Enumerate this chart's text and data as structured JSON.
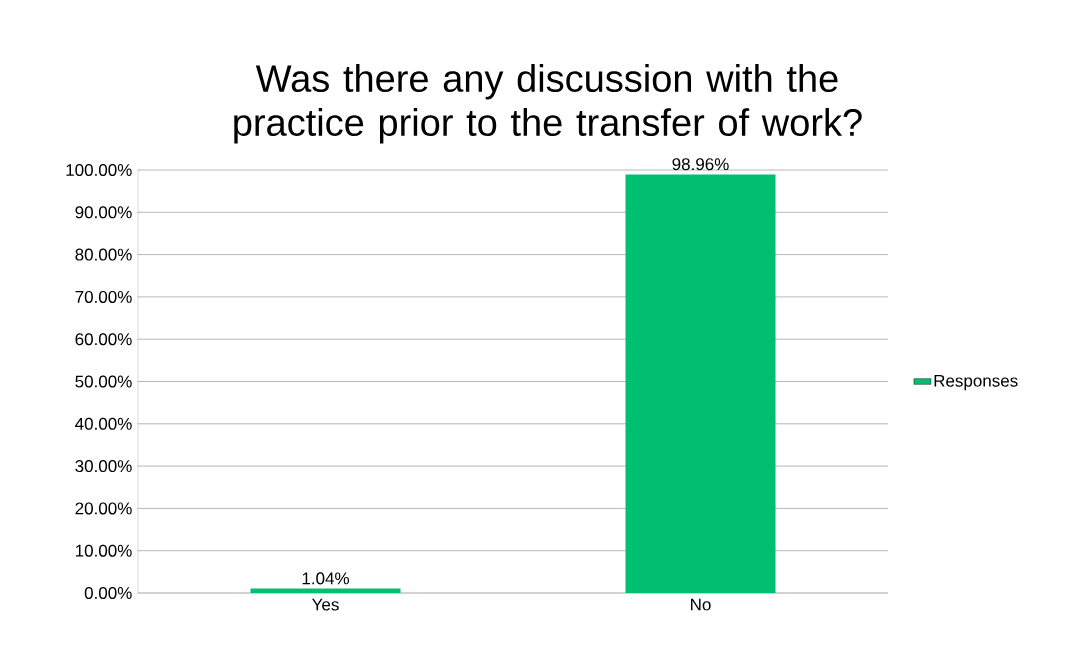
{
  "chart_data": {
    "type": "bar",
    "title": "Was there any discussion with the practice prior to the transfer of work?",
    "categories": [
      "Yes",
      "No"
    ],
    "series": [
      {
        "name": "Responses",
        "color": "#00bf6f",
        "values": [
          1.04,
          98.96
        ],
        "value_labels": [
          "1.04%",
          "98.96%"
        ]
      }
    ],
    "ylim": [
      0,
      100
    ],
    "yticks": [
      {
        "value": 0,
        "label": "0.00%"
      },
      {
        "value": 10,
        "label": "10.00%"
      },
      {
        "value": 20,
        "label": "20.00%"
      },
      {
        "value": 30,
        "label": "30.00%"
      },
      {
        "value": 40,
        "label": "40.00%"
      },
      {
        "value": 50,
        "label": "50.00%"
      },
      {
        "value": 60,
        "label": "60.00%"
      },
      {
        "value": 70,
        "label": "70.00%"
      },
      {
        "value": 80,
        "label": "80.00%"
      },
      {
        "value": 90,
        "label": "90.00%"
      },
      {
        "value": 100,
        "label": "100.00%"
      }
    ],
    "grid": "y",
    "legend": "right"
  }
}
